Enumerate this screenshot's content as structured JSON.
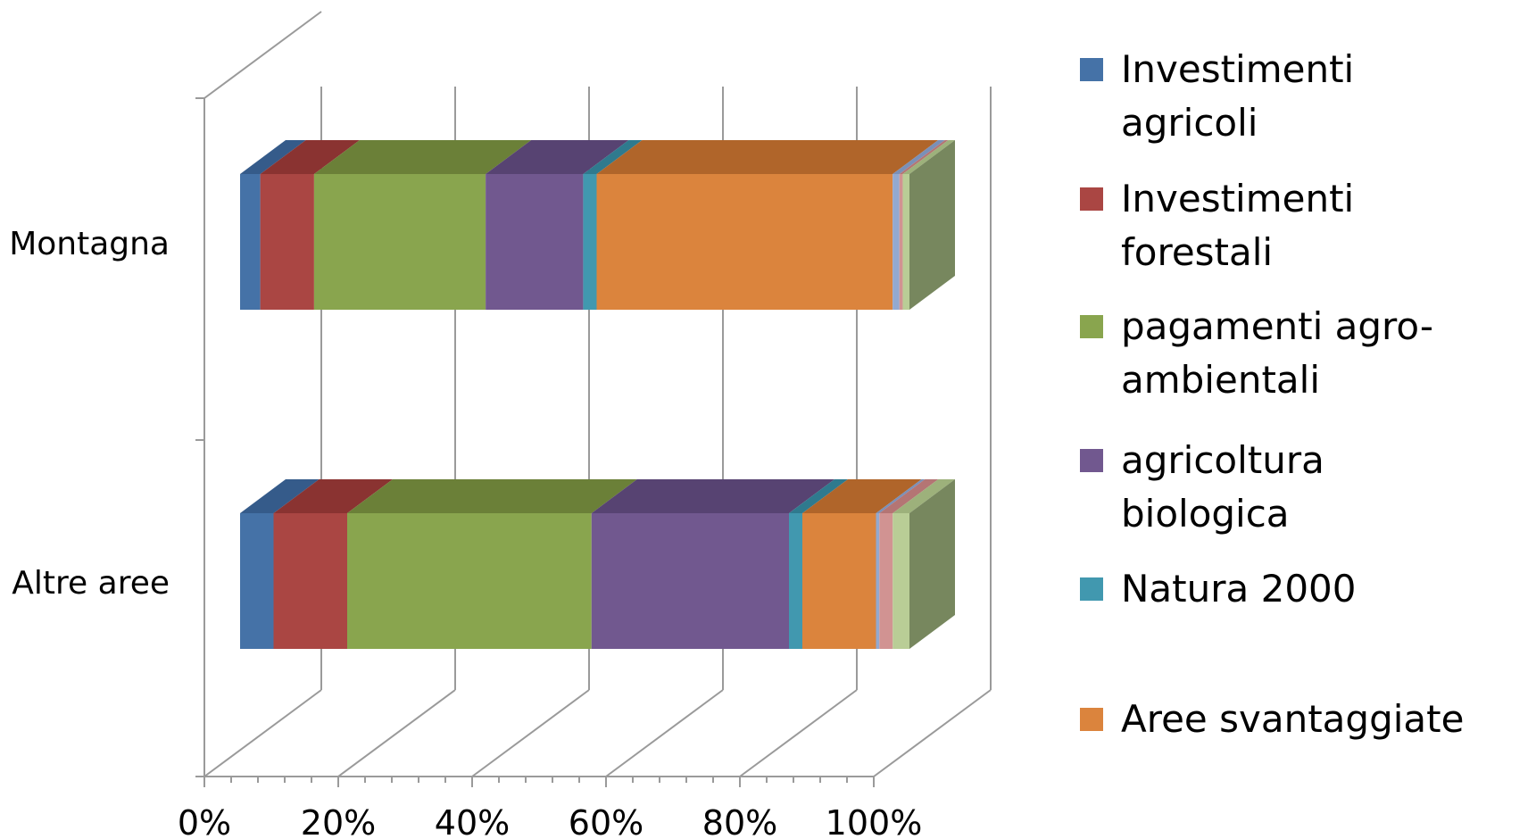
{
  "chart_data": {
    "type": "bar",
    "orientation": "horizontal",
    "stacked": "percent",
    "three_d": true,
    "categories": [
      "Montagna",
      "Altre aree"
    ],
    "xaxis_ticks": [
      "0%",
      "20%",
      "40%",
      "60%",
      "80%",
      "100%"
    ],
    "xlim": [
      0,
      100
    ],
    "legend_position": "right",
    "grid": true,
    "series": [
      {
        "name": "Investimenti agricoli",
        "color": "#4572A7",
        "side_color": "#355b8a",
        "values": [
          3,
          5
        ]
      },
      {
        "name": "Investimenti forestali",
        "color": "#AA4643",
        "side_color": "#8a3331",
        "values": [
          8,
          11
        ]
      },
      {
        "name": "pagamenti agro-ambientali",
        "color": "#89A54E",
        "side_color": "#6b8038",
        "values": [
          25.5,
          36.5
        ]
      },
      {
        "name": "agricoltura biologica",
        "color": "#71588F",
        "side_color": "#574372",
        "values": [
          14.5,
          29.5
        ]
      },
      {
        "name": "Natura 2000",
        "color": "#4198AF",
        "side_color": "#2f7a8e",
        "values": [
          2,
          2
        ]
      },
      {
        "name": "Aree svantaggiate",
        "color": "#DB843D",
        "side_color": "#b0652a",
        "values": [
          44,
          11
        ]
      },
      {
        "name": "",
        "color": "#93A9CF",
        "side_color": "#7a90b8",
        "values": [
          1,
          0.5
        ]
      },
      {
        "name": "",
        "color": "#D19392",
        "side_color": "#b47574",
        "values": [
          0.5,
          2
        ]
      },
      {
        "name": "",
        "color": "#B9CD96",
        "side_color": "#9db17b",
        "values": [
          1,
          2.5
        ]
      }
    ]
  },
  "legend": {
    "items": [
      {
        "label": "Investimenti agricoli",
        "color": "#4572A7"
      },
      {
        "label": "Investimenti forestali",
        "color": "#AA4643"
      },
      {
        "label": "pagamenti agro-ambientali",
        "color": "#89A54E"
      },
      {
        "label": "agricoltura biologica",
        "color": "#71588F"
      },
      {
        "label": "Natura 2000",
        "color": "#4198AF"
      },
      {
        "label": "Aree svantaggiate",
        "color": "#DB843D"
      }
    ]
  }
}
